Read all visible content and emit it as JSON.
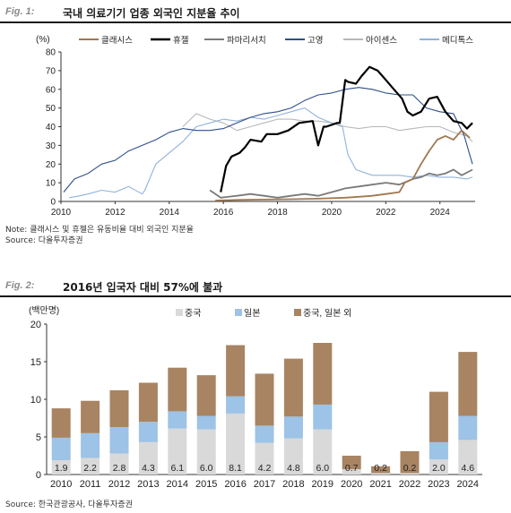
{
  "figure1": {
    "label": "Fig. 1:",
    "title": "국내 의료기기 업종 외국인 지분율 추이",
    "note": "Note: 클래시스 및 휴젤은 유동비율 대비 외국인 지분율",
    "source": "Source: 다올투자증권",
    "colors": {
      "클래시스": "#a07850",
      "휴젤": "#000000",
      "파마리서치": "#7a7a7a",
      "고영": "#2e4f8a",
      "아이센스": "#b8b8b8",
      "메디톡스": "#8fb3d9"
    },
    "chart_data": {
      "type": "line",
      "ylabel": "(%)",
      "ylim": [
        0,
        80
      ],
      "yticks": [
        0,
        10,
        20,
        30,
        40,
        50,
        60,
        70,
        80
      ],
      "xlim": [
        2010,
        2025.3
      ],
      "xticks": [
        2010,
        2012,
        2014,
        2016,
        2018,
        2020,
        2022,
        2024
      ],
      "legend_position": "top",
      "grid": false,
      "series": [
        {
          "name": "클래시스",
          "x": [
            2015.7,
            2016.5,
            2017.5,
            2018.5,
            2019.5,
            2020.5,
            2021.0,
            2021.5,
            2022.0,
            2022.5,
            2022.7,
            2023.0,
            2023.3,
            2023.6,
            2023.9,
            2024.2,
            2024.5,
            2024.8,
            2025.1
          ],
          "y": [
            0.5,
            0.8,
            1,
            1.2,
            1.5,
            2,
            2.5,
            3,
            4,
            5,
            10,
            12,
            20,
            27,
            33,
            35,
            33,
            38,
            34
          ]
        },
        {
          "name": "휴젤",
          "x": [
            2015.9,
            2016.1,
            2016.3,
            2016.6,
            2016.8,
            2017.0,
            2017.4,
            2017.6,
            2018.0,
            2018.4,
            2018.8,
            2019.3,
            2019.5,
            2019.7,
            2019.8,
            2020.2,
            2020.3,
            2020.5,
            2020.6,
            2020.9,
            2021.1,
            2021.4,
            2021.7,
            2022.0,
            2022.3,
            2022.6,
            2022.8,
            2023.0,
            2023.3,
            2023.6,
            2023.9,
            2024.2,
            2024.5,
            2024.8,
            2025.0,
            2025.2
          ],
          "y": [
            5,
            19,
            24,
            26,
            29,
            33,
            32,
            36,
            36,
            38,
            42,
            43,
            30,
            40,
            40,
            42,
            42,
            65,
            64,
            63,
            67,
            72,
            70,
            65,
            60,
            55,
            48,
            46,
            48,
            55,
            56,
            48,
            43,
            42,
            39,
            42
          ]
        },
        {
          "name": "파마리서치",
          "x": [
            2015.5,
            2015.9,
            2016.5,
            2017.0,
            2017.5,
            2018.0,
            2018.5,
            2019.0,
            2019.5,
            2020.0,
            2020.5,
            2021.0,
            2021.5,
            2022.0,
            2022.5,
            2023.0,
            2023.3,
            2023.6,
            2023.9,
            2024.2,
            2024.5,
            2024.8,
            2025.2
          ],
          "y": [
            6,
            2,
            3,
            4,
            3,
            2,
            3,
            4,
            3,
            5,
            7,
            8,
            9,
            10,
            9,
            12,
            13,
            15,
            14,
            15,
            17,
            14,
            17
          ]
        },
        {
          "name": "고영",
          "x": [
            2010.1,
            2010.5,
            2011.0,
            2011.5,
            2012.0,
            2012.5,
            2013.0,
            2013.5,
            2014.0,
            2014.5,
            2015.0,
            2015.5,
            2016.0,
            2016.5,
            2017.0,
            2017.5,
            2018.0,
            2018.5,
            2019.0,
            2019.5,
            2020.0,
            2020.5,
            2021.0,
            2021.5,
            2022.0,
            2022.5,
            2023.0,
            2023.5,
            2024.0,
            2024.5,
            2024.9,
            2025.2
          ],
          "y": [
            5,
            12,
            15,
            20,
            22,
            27,
            30,
            33,
            37,
            39,
            38,
            38,
            39,
            42,
            45,
            47,
            48,
            50,
            54,
            57,
            58,
            60,
            61,
            60,
            58,
            57,
            57,
            50,
            48,
            47,
            35,
            20
          ]
        },
        {
          "name": "아이센스",
          "x": [
            2014.5,
            2015.0,
            2015.5,
            2016.0,
            2016.5,
            2017.0,
            2017.5,
            2018.0,
            2018.5,
            2019.0,
            2019.5,
            2020.0,
            2020.5,
            2021.0,
            2021.5,
            2022.0,
            2022.5,
            2023.0,
            2023.5,
            2024.0,
            2024.5,
            2025.0,
            2025.2
          ],
          "y": [
            40,
            47,
            44,
            42,
            38,
            40,
            42,
            44,
            44,
            43,
            43,
            42,
            40,
            39,
            40,
            40,
            38,
            39,
            40,
            40,
            37,
            35,
            32
          ]
        },
        {
          "name": "메디톡스",
          "x": [
            2010.3,
            2010.7,
            2011.0,
            2011.5,
            2012.0,
            2012.5,
            2013.0,
            2013.1,
            2013.5,
            2014.0,
            2014.5,
            2015.0,
            2015.5,
            2016.0,
            2016.5,
            2017.0,
            2017.5,
            2018.0,
            2018.5,
            2019.0,
            2019.5,
            2020.0,
            2020.4,
            2020.6,
            2020.9,
            2021.5,
            2022.0,
            2022.5,
            2023.0,
            2023.5,
            2024.0,
            2024.5,
            2025.0,
            2025.2
          ],
          "y": [
            2,
            3,
            4,
            6,
            5,
            8,
            4,
            6,
            20,
            26,
            32,
            40,
            42,
            44,
            43,
            45,
            44,
            46,
            48,
            50,
            45,
            42,
            40,
            25,
            17,
            14,
            14,
            14,
            13,
            14,
            13,
            13,
            12,
            13
          ]
        }
      ]
    }
  },
  "figure2": {
    "label": "Fig. 2:",
    "title": "2016년 입국자 대비 57%에 불과",
    "source": "Source: 한국관광공사, 다올투자증권",
    "colors": {
      "중국": "#d9d9d9",
      "일본": "#9dc3e6",
      "중국, 일본 외": "#a88462"
    },
    "chart_data": {
      "type": "bar",
      "stacked": true,
      "ylabel": "(백만명)",
      "ylim": [
        0,
        20
      ],
      "yticks": [
        0,
        5,
        10,
        15,
        20
      ],
      "legend_position": "top",
      "grid": false,
      "categories": [
        "2010",
        "2011",
        "2012",
        "2013",
        "2014",
        "2015",
        "2016",
        "2017",
        "2018",
        "2019",
        "2020",
        "2021",
        "2022",
        "2023",
        "2024"
      ],
      "series": [
        {
          "name": "중국",
          "values": [
            1.9,
            2.2,
            2.8,
            4.3,
            6.1,
            6.0,
            8.1,
            4.2,
            4.8,
            6.0,
            0.7,
            0.2,
            0.2,
            2.0,
            4.6
          ],
          "labels": [
            "1.9",
            "2.2",
            "2.8",
            "4.3",
            "6.1",
            "6.0",
            "8.1",
            "4.2",
            "4.8",
            "6.0",
            "0.7",
            "0.2",
            "0.2",
            "2.0",
            "4.6"
          ]
        },
        {
          "name": "일본",
          "values": [
            3.0,
            3.3,
            3.5,
            2.7,
            2.3,
            1.8,
            2.3,
            2.3,
            2.9,
            3.3,
            0.0,
            0.0,
            0.0,
            2.3,
            3.2
          ]
        },
        {
          "name": "중국, 일본 외",
          "values": [
            3.9,
            4.3,
            4.9,
            5.2,
            5.8,
            5.4,
            6.8,
            6.9,
            7.7,
            8.2,
            1.8,
            0.9,
            2.9,
            6.7,
            8.5
          ]
        }
      ]
    }
  }
}
